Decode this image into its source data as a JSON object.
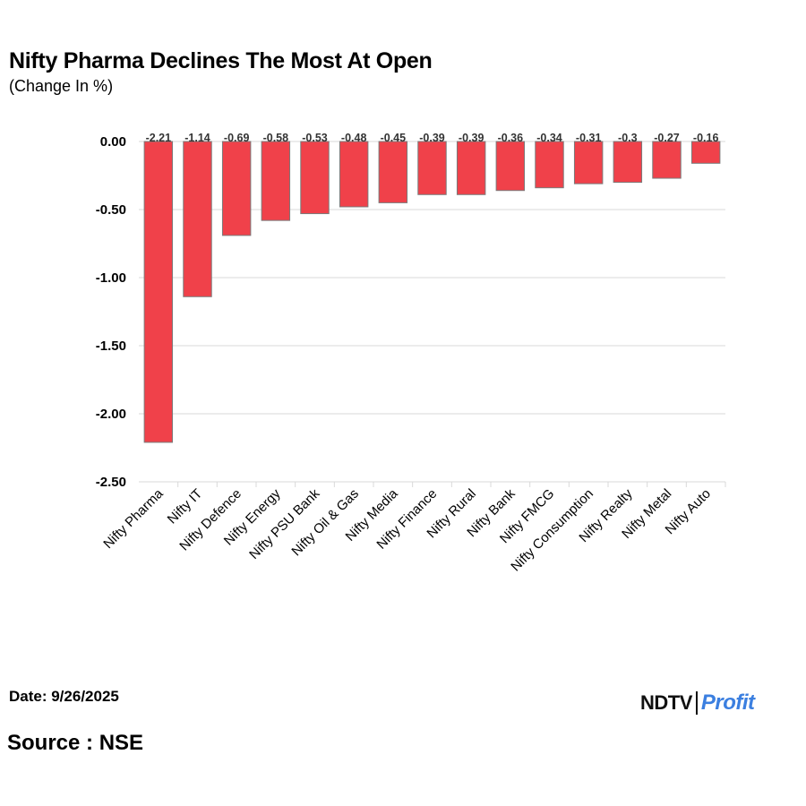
{
  "header": {
    "title": "Nifty Pharma Declines The Most At Open",
    "subtitle": "(Change In %)"
  },
  "footer": {
    "date": "Date: 9/26/2025",
    "source": "Source : NSE",
    "brand_left": "NDTV",
    "brand_right": "Profit"
  },
  "colors": {
    "bar_fill": "#f0414a",
    "bar_stroke": "#7a7a7a",
    "grid": "#d9d9d9"
  },
  "chart_data": {
    "type": "bar",
    "title": "Nifty Pharma Declines The Most At Open",
    "subtitle": "(Change In %)",
    "categories": [
      "Nifty Pharma",
      "Nifty IT",
      "Nifty Defence",
      "Nifty Energy",
      "Nifty PSU Bank",
      "Nifty Oil & Gas",
      "Nifty Media",
      "Nifty Finance",
      "Nifty Rural",
      "Nifty Bank",
      "Nifty FMCG",
      "Nifty Consumption",
      "Nifty Realty",
      "Nifty Metal",
      "Nifty Auto"
    ],
    "values": [
      -2.21,
      -1.14,
      -0.69,
      -0.58,
      -0.53,
      -0.48,
      -0.45,
      -0.39,
      -0.39,
      -0.36,
      -0.34,
      -0.31,
      -0.3,
      -0.27,
      -0.16
    ],
    "value_labels": [
      "-2.21",
      "-1.14",
      "-0.69",
      "-0.58",
      "-0.53",
      "-0.48",
      "-0.45",
      "-0.39",
      "-0.39",
      "-0.36",
      "-0.34",
      "-0.31",
      "-0.3",
      "-0.27",
      "-0.16"
    ],
    "yticks": [
      0,
      -0.5,
      -1,
      -1.5,
      -2,
      -2.5
    ],
    "ytick_labels": [
      "0.00",
      "-0.50",
      "-1.00",
      "-1.50",
      "-2.00",
      "-2.50"
    ],
    "ylim": [
      -2.5,
      0
    ],
    "grid": true,
    "legend": "none"
  }
}
